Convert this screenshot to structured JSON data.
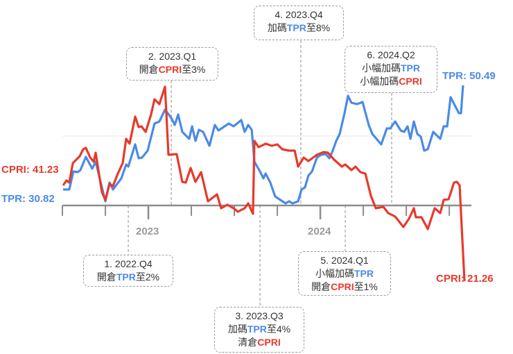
{
  "colors": {
    "cpri": "#e8392b",
    "tpr": "#4a8ae8",
    "axis": "#8c8c8c",
    "grid": "#eeeeee"
  },
  "chart_data": {
    "type": "line",
    "title": "",
    "xlabel": "",
    "ylabel": "",
    "x_unit": "months since 2022-07 (approx.)",
    "y_unit": "relative index (estimated, axis line = 0)",
    "xlim": [
      0,
      28.1
    ],
    "ylim": [
      -110,
      175
    ],
    "x_tick_labels": [
      {
        "x": 6,
        "label": "2023"
      },
      {
        "x": 18,
        "label": "2024"
      }
    ],
    "minor_ticks": [
      0,
      3,
      9,
      12,
      15,
      21,
      24,
      27
    ],
    "series": [
      {
        "name": "TPR",
        "start_label": "TPR: 30.82",
        "end_label": "TPR: 50.49",
        "points": [
          [
            0.05,
            23
          ],
          [
            0.48,
            23
          ],
          [
            0.77,
            49
          ],
          [
            1.06,
            48
          ],
          [
            1.26,
            51
          ],
          [
            1.64,
            70
          ],
          [
            2.08,
            53
          ],
          [
            2.32,
            63
          ],
          [
            2.76,
            26
          ],
          [
            3.0,
            6
          ],
          [
            3.29,
            33
          ],
          [
            3.53,
            23
          ],
          [
            4.11,
            39
          ],
          [
            4.45,
            59
          ],
          [
            4.6,
            56
          ],
          [
            5.08,
            88
          ],
          [
            5.32,
            68
          ],
          [
            5.56,
            69
          ],
          [
            5.95,
            79
          ],
          [
            6.43,
            118
          ],
          [
            6.77,
            121
          ],
          [
            7.16,
            138
          ],
          [
            7.6,
            126
          ],
          [
            7.84,
            116
          ],
          [
            8.08,
            131
          ],
          [
            8.37,
            106
          ],
          [
            8.85,
            96
          ],
          [
            9.05,
            114
          ],
          [
            9.29,
            93
          ],
          [
            9.53,
            109
          ],
          [
            9.82,
            106
          ],
          [
            10.26,
            86
          ],
          [
            10.64,
            116
          ],
          [
            10.89,
            108
          ],
          [
            11.61,
            118
          ],
          [
            11.95,
            114
          ],
          [
            12.48,
            123
          ],
          [
            12.72,
            106
          ],
          [
            12.97,
            116
          ],
          [
            13.21,
            109
          ],
          [
            13.4,
            63
          ],
          [
            13.79,
            49
          ],
          [
            14.03,
            39
          ],
          [
            14.18,
            46
          ],
          [
            14.51,
            33
          ],
          [
            14.85,
            13
          ],
          [
            15.14,
            9
          ],
          [
            15.58,
            3
          ],
          [
            15.82,
            6
          ],
          [
            16.06,
            3
          ],
          [
            16.45,
            6
          ],
          [
            16.69,
            23
          ],
          [
            16.93,
            26
          ],
          [
            17.17,
            43
          ],
          [
            17.42,
            49
          ],
          [
            17.76,
            69
          ],
          [
            18.05,
            73
          ],
          [
            18.38,
            74
          ],
          [
            18.63,
            68
          ],
          [
            18.87,
            79
          ],
          [
            19.11,
            93
          ],
          [
            19.35,
            103
          ],
          [
            19.69,
            133
          ],
          [
            19.93,
            158
          ],
          [
            20.17,
            148
          ],
          [
            20.56,
            146
          ],
          [
            20.95,
            149
          ],
          [
            21.38,
            116
          ],
          [
            21.63,
            103
          ],
          [
            22.25,
            88
          ],
          [
            22.64,
            111
          ],
          [
            22.88,
            111
          ],
          [
            23.22,
            121
          ],
          [
            23.61,
            108
          ],
          [
            23.85,
            106
          ],
          [
            24.09,
            114
          ],
          [
            24.29,
            96
          ],
          [
            24.53,
            121
          ],
          [
            24.77,
            103
          ],
          [
            25.01,
            99
          ],
          [
            25.25,
            79
          ],
          [
            25.5,
            81
          ],
          [
            25.88,
            106
          ],
          [
            26.37,
            96
          ],
          [
            26.61,
            114
          ],
          [
            26.85,
            114
          ],
          [
            27.09,
            156
          ],
          [
            27.67,
            133
          ],
          [
            27.82,
            133
          ],
          [
            27.96,
            173
          ]
        ]
      },
      {
        "name": "CPRI",
        "start_label": "CPRI: 41.23",
        "end_label": "CPRI: 21.26",
        "points": [
          [
            0.05,
            29
          ],
          [
            0.29,
            36
          ],
          [
            0.48,
            33
          ],
          [
            0.73,
            61
          ],
          [
            1.21,
            71
          ],
          [
            1.45,
            81
          ],
          [
            1.64,
            83
          ],
          [
            1.94,
            69
          ],
          [
            2.18,
            63
          ],
          [
            2.32,
            76
          ],
          [
            2.76,
            19
          ],
          [
            3.0,
            8
          ],
          [
            3.29,
            31
          ],
          [
            3.53,
            28
          ],
          [
            3.87,
            46
          ],
          [
            4.21,
            61
          ],
          [
            4.45,
            96
          ],
          [
            4.69,
            89
          ],
          [
            5.08,
            128
          ],
          [
            5.32,
            113
          ],
          [
            5.52,
            114
          ],
          [
            5.81,
            106
          ],
          [
            6.19,
            131
          ],
          [
            6.43,
            153
          ],
          [
            6.77,
            146
          ],
          [
            7.16,
            171
          ],
          [
            7.4,
            73
          ],
          [
            7.98,
            74
          ],
          [
            8.37,
            34
          ],
          [
            8.61,
            33
          ],
          [
            8.95,
            54
          ],
          [
            9.29,
            34
          ],
          [
            9.68,
            48
          ],
          [
            10.16,
            6
          ],
          [
            10.79,
            16
          ],
          [
            11.08,
            -4
          ],
          [
            11.51,
            1
          ],
          [
            11.95,
            -4
          ],
          [
            12.24,
            -9
          ],
          [
            12.72,
            -4
          ],
          [
            12.97,
            3
          ],
          [
            13.3,
            -12
          ],
          [
            13.4,
            93
          ],
          [
            13.69,
            84
          ],
          [
            14.18,
            89
          ],
          [
            14.61,
            86
          ],
          [
            15.0,
            88
          ],
          [
            15.34,
            81
          ],
          [
            15.82,
            79
          ],
          [
            16.21,
            79
          ],
          [
            16.45,
            56
          ],
          [
            16.84,
            69
          ],
          [
            17.17,
            64
          ],
          [
            17.76,
            73
          ],
          [
            18.24,
            77
          ],
          [
            18.53,
            76
          ],
          [
            18.96,
            66
          ],
          [
            19.5,
            56
          ],
          [
            19.74,
            59
          ],
          [
            20.17,
            51
          ],
          [
            20.46,
            56
          ],
          [
            20.8,
            48
          ],
          [
            21.14,
            46
          ],
          [
            21.53,
            14
          ],
          [
            21.87,
            -4
          ],
          [
            22.4,
            -2
          ],
          [
            22.74,
            -11
          ],
          [
            23.22,
            -16
          ],
          [
            23.8,
            -31
          ],
          [
            24.19,
            -19
          ],
          [
            24.53,
            -4
          ],
          [
            24.67,
            -17
          ],
          [
            25.06,
            -17
          ],
          [
            25.5,
            -34
          ],
          [
            25.98,
            -4
          ],
          [
            26.37,
            -11
          ],
          [
            26.61,
            8
          ],
          [
            26.95,
            9
          ],
          [
            27.33,
            33
          ],
          [
            27.53,
            34
          ],
          [
            27.72,
            29
          ],
          [
            28.06,
            -109
          ]
        ]
      }
    ],
    "annotations": [
      {
        "x": 4.6,
        "side": "below",
        "lines": [
          [
            {
              "t": "1. 2022.Q4",
              "c": ""
            }
          ],
          [
            {
              "t": "開倉",
              "c": ""
            },
            {
              "t": "TPR",
              "c": "tpr"
            },
            {
              "t": "至2%",
              "c": ""
            }
          ]
        ]
      },
      {
        "x": 7.6,
        "side": "above",
        "lines": [
          [
            {
              "t": "2. 2023.Q1",
              "c": ""
            }
          ],
          [
            {
              "t": "開倉",
              "c": ""
            },
            {
              "t": "CPRI",
              "c": "cpri"
            },
            {
              "t": "至3%",
              "c": ""
            }
          ]
        ]
      },
      {
        "x": 13.79,
        "side": "below",
        "lines": [
          [
            {
              "t": "3. 2023.Q3",
              "c": ""
            }
          ],
          [
            {
              "t": "加碼",
              "c": ""
            },
            {
              "t": "TPR",
              "c": "tpr"
            },
            {
              "t": "至4%",
              "c": ""
            }
          ],
          [
            {
              "t": "清倉",
              "c": ""
            },
            {
              "t": "CPRI",
              "c": "cpri"
            }
          ]
        ]
      },
      {
        "x": 16.64,
        "side": "above",
        "lines": [
          [
            {
              "t": "4. 2023.Q4",
              "c": ""
            }
          ],
          [
            {
              "t": "加碼",
              "c": ""
            },
            {
              "t": "TPR",
              "c": "tpr"
            },
            {
              "t": "至8%",
              "c": ""
            }
          ]
        ]
      },
      {
        "x": 19.74,
        "side": "below",
        "lines": [
          [
            {
              "t": "5. 2024.Q1",
              "c": ""
            }
          ],
          [
            {
              "t": "小幅加碼",
              "c": ""
            },
            {
              "t": "TPR",
              "c": "tpr"
            }
          ],
          [
            {
              "t": "開倉",
              "c": ""
            },
            {
              "t": "CPRI",
              "c": "cpri"
            },
            {
              "t": "至1%",
              "c": ""
            }
          ]
        ]
      },
      {
        "x": 22.98,
        "side": "above",
        "lines": [
          [
            {
              "t": "6. 2024.Q2",
              "c": ""
            }
          ],
          [
            {
              "t": "小幅加碼",
              "c": ""
            },
            {
              "t": "TPR",
              "c": "tpr"
            }
          ],
          [
            {
              "t": "小幅加碼",
              "c": ""
            },
            {
              "t": "CPRI",
              "c": "cpri"
            }
          ]
        ]
      }
    ]
  }
}
